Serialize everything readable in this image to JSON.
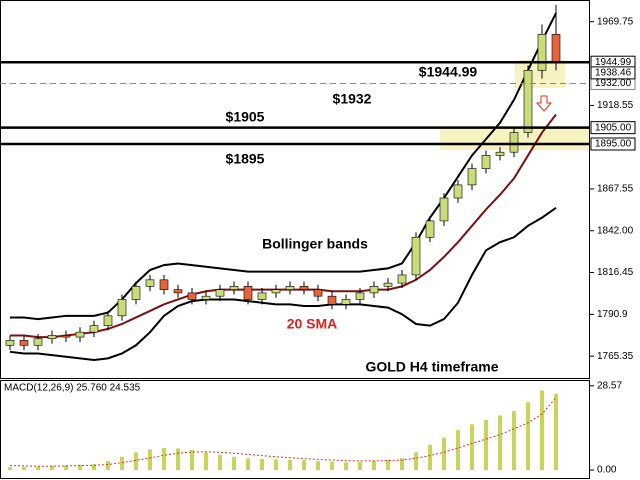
{
  "chart_data": [
    {
      "type": "candlestick",
      "open": [
        1772,
        1775,
        1772,
        1776,
        1778,
        1777,
        1780,
        1784,
        1790,
        1800,
        1808,
        1812,
        1806,
        1804,
        1800,
        1802,
        1806,
        1808,
        1800,
        1804,
        1806,
        1808,
        1806,
        1802,
        1797,
        1800,
        1804,
        1808,
        1810,
        1815,
        1838,
        1848,
        1862,
        1870,
        1880,
        1888,
        1890,
        1902,
        1940,
        1962
      ],
      "high": [
        1778,
        1778,
        1779,
        1781,
        1781,
        1783,
        1787,
        1793,
        1803,
        1811,
        1815,
        1815,
        1809,
        1807,
        1805,
        1809,
        1811,
        1811,
        1807,
        1809,
        1811,
        1811,
        1809,
        1805,
        1803,
        1807,
        1811,
        1813,
        1818,
        1841,
        1851,
        1865,
        1873,
        1883,
        1891,
        1893,
        1905,
        1943,
        1968,
        1980
      ],
      "low": [
        1769,
        1769,
        1769,
        1773,
        1774,
        1774,
        1777,
        1781,
        1787,
        1797,
        1805,
        1803,
        1801,
        1797,
        1797,
        1799,
        1803,
        1797,
        1797,
        1801,
        1803,
        1803,
        1799,
        1794,
        1794,
        1797,
        1801,
        1805,
        1807,
        1812,
        1835,
        1845,
        1859,
        1867,
        1877,
        1885,
        1887,
        1899,
        1935,
        1940
      ],
      "close": [
        1775,
        1772,
        1776,
        1778,
        1777,
        1780,
        1784,
        1790,
        1800,
        1808,
        1812,
        1806,
        1804,
        1800,
        1802,
        1806,
        1808,
        1800,
        1804,
        1806,
        1808,
        1806,
        1802,
        1797,
        1800,
        1804,
        1808,
        1810,
        1815,
        1838,
        1848,
        1862,
        1870,
        1880,
        1888,
        1890,
        1902,
        1940,
        1962,
        1945
      ],
      "up_color": "#c8dc78",
      "down_color": "#e8623a",
      "lines": [
        {
          "color": "#000000",
          "values": [
            1789,
            1789,
            1788,
            1789,
            1790,
            1790,
            1790,
            1792,
            1800,
            1810,
            1818,
            1821,
            1822,
            1821,
            1820,
            1819,
            1818,
            1817,
            1817,
            1817,
            1817,
            1817,
            1817,
            1817,
            1817,
            1817,
            1818,
            1819,
            1822,
            1835,
            1850,
            1862,
            1875,
            1888,
            1898,
            1908,
            1922,
            1940,
            1958,
            1975
          ]
        },
        {
          "color": "#7a1010",
          "values": [
            1778,
            1778,
            1777,
            1777,
            1778,
            1779,
            1780,
            1782,
            1785,
            1789,
            1793,
            1797,
            1800,
            1803,
            1805,
            1806,
            1806,
            1806,
            1806,
            1806,
            1806,
            1806,
            1806,
            1805,
            1805,
            1805,
            1806,
            1806,
            1808,
            1812,
            1818,
            1826,
            1835,
            1845,
            1855,
            1864,
            1874,
            1888,
            1902,
            1913
          ]
        },
        {
          "color": "#000000",
          "values": [
            1768,
            1767,
            1767,
            1766,
            1765,
            1764,
            1763,
            1764,
            1767,
            1772,
            1780,
            1790,
            1796,
            1799,
            1800,
            1800,
            1800,
            1799,
            1798,
            1797,
            1797,
            1796,
            1796,
            1797,
            1797,
            1797,
            1796,
            1795,
            1791,
            1785,
            1784,
            1788,
            1798,
            1815,
            1830,
            1835,
            1838,
            1845,
            1850,
            1856
          ]
        }
      ],
      "hlines": [
        {
          "value": 1944.99,
          "label": "1944.99",
          "color": "#000000",
          "dashed": false
        },
        {
          "value": 1932,
          "label": "1932.00",
          "color": "#888888",
          "dashed": true
        },
        {
          "value": 1905,
          "label": "1905.00",
          "color": "#000000",
          "dashed": false
        },
        {
          "value": 1895,
          "label": "1895.00",
          "color": "#000000",
          "dashed": false
        }
      ],
      "current_price": {
        "value": 1938.46,
        "label": "1938.46"
      },
      "ylim": [
        1752,
        1983
      ],
      "yticks": [
        1765.35,
        1790.9,
        1816.45,
        {
          "value": 1842,
          "label": "1842.00"
        },
        1867.55,
        1918.55,
        1969.75
      ],
      "annotations": [
        {
          "text": "$1944.99",
          "color": "#000000"
        },
        {
          "text": "$1932",
          "color": "#000000"
        },
        {
          "text": "$1905",
          "color": "#000000"
        },
        {
          "text": "$1895",
          "color": "#000000"
        },
        {
          "text": "Bollinger bands",
          "color": "#000000"
        },
        {
          "text": "20 SMA",
          "color": "#e0201c"
        },
        {
          "text": "GOLD H4 timeframe",
          "color": "#000000"
        }
      ]
    },
    {
      "type": "macd",
      "title": "MACD(12,26,9) 25.760 24.535",
      "histogram": [
        1,
        1,
        1.2,
        1.5,
        1.6,
        1.8,
        2,
        3,
        4.5,
        6,
        7,
        7.5,
        7.3,
        6.8,
        6,
        5.2,
        4.5,
        4,
        3.8,
        3.6,
        3.5,
        3.4,
        3,
        2.8,
        2.6,
        2.8,
        3.2,
        3.5,
        4,
        6,
        8.5,
        11,
        13.5,
        15.5,
        17,
        18.5,
        20,
        23,
        27,
        25.76
      ],
      "signal": [
        1.5,
        1.4,
        1.3,
        1.3,
        1.4,
        1.5,
        1.6,
        1.9,
        2.5,
        3.3,
        4.1,
        5,
        5.7,
        6.1,
        6.2,
        6,
        5.7,
        5.3,
        4.9,
        4.5,
        4.2,
        3.9,
        3.6,
        3.4,
        3.2,
        3.1,
        3.1,
        3.2,
        3.4,
        4,
        4.9,
        6,
        7.5,
        9,
        10.5,
        12,
        14,
        16,
        19,
        24.535
      ],
      "histogram_color": "#c8d45a",
      "signal_color": "#e03020",
      "ylim": [
        -2.7,
        30.2
      ],
      "yticks": [
        28.57,
        {
          "value": 0,
          "label": "0.00"
        }
      ]
    }
  ]
}
